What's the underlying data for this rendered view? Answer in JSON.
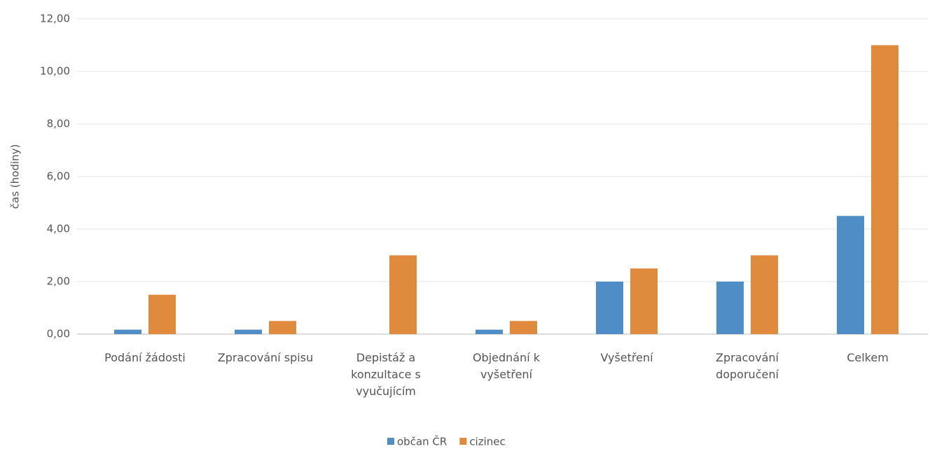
{
  "chart_data": {
    "type": "bar",
    "y_label": "čas (hodiny)",
    "categories": [
      "Podání žádosti",
      "Zpracování spisu",
      "Depistáž a konzultace s vyučujícím",
      "Objednání k vyšetření",
      "Vyšetření",
      "Zpracování doporučení",
      "Celkem"
    ],
    "series": [
      {
        "name": "občan ČR",
        "color": "#4f8dc6",
        "values": [
          0.17,
          0.17,
          0,
          0.17,
          2.0,
          2.0,
          4.5
        ]
      },
      {
        "name": "cizinec",
        "color": "#e08a3e",
        "values": [
          1.5,
          0.5,
          3.0,
          0.5,
          2.5,
          3.0,
          11.0
        ]
      }
    ],
    "ylim": [
      0,
      12
    ],
    "yticks": [
      {
        "value": 0,
        "label": "0,00"
      },
      {
        "value": 2,
        "label": "2,00"
      },
      {
        "value": 4,
        "label": "4,00"
      },
      {
        "value": 6,
        "label": "6,00"
      },
      {
        "value": 8,
        "label": "8,00"
      },
      {
        "value": 10,
        "label": "10,00"
      },
      {
        "value": 12,
        "label": "12,00"
      }
    ],
    "grid": true,
    "legend": "bottom"
  }
}
